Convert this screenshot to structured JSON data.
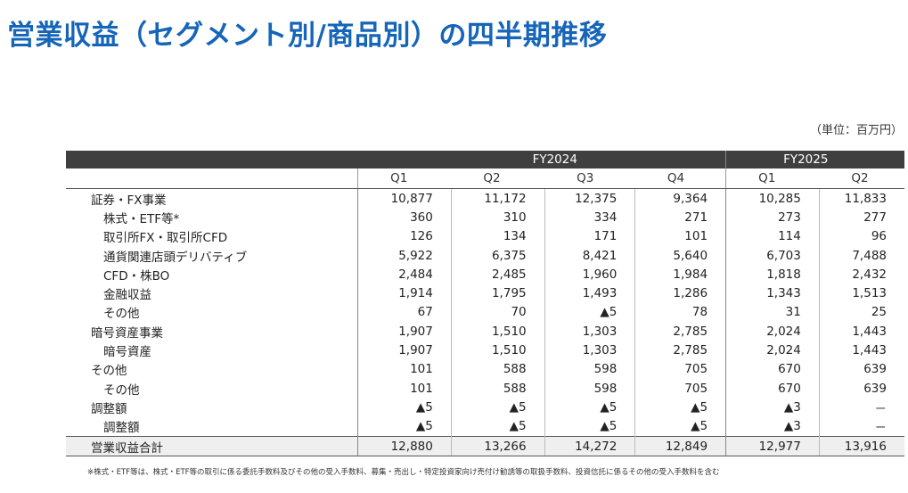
{
  "title": "営業収益（セグメント別/商品別）の四半期推移",
  "unit": "（単位：百万円）",
  "fiscal_years": [
    "FY2024",
    "FY2025"
  ],
  "quarters": [
    "Q1",
    "Q2",
    "Q3",
    "Q4",
    "Q1",
    "Q2"
  ],
  "rows": [
    {
      "label": "証券・FX事業",
      "level": "category",
      "values": [
        "10,877",
        "11,172",
        "12,375",
        "9,364",
        "10,285",
        "11,833"
      ]
    },
    {
      "label": "株式・ETF等*",
      "level": "sub",
      "values": [
        "360",
        "310",
        "334",
        "271",
        "273",
        "277"
      ]
    },
    {
      "label": "取引所FX・取引所CFD",
      "level": "sub",
      "values": [
        "126",
        "134",
        "171",
        "101",
        "114",
        "96"
      ]
    },
    {
      "label": "通貨関連店頭デリバティブ",
      "level": "sub",
      "values": [
        "5,922",
        "6,375",
        "8,421",
        "5,640",
        "6,703",
        "7,488"
      ]
    },
    {
      "label": "CFD・株BO",
      "level": "sub",
      "values": [
        "2,484",
        "2,485",
        "1,960",
        "1,984",
        "1,818",
        "2,432"
      ]
    },
    {
      "label": "金融収益",
      "level": "sub",
      "values": [
        "1,914",
        "1,795",
        "1,493",
        "1,286",
        "1,343",
        "1,513"
      ]
    },
    {
      "label": "その他",
      "level": "sub",
      "values": [
        "67",
        "70",
        "▲5",
        "78",
        "31",
        "25"
      ]
    },
    {
      "label": "暗号資産事業",
      "level": "category",
      "values": [
        "1,907",
        "1,510",
        "1,303",
        "2,785",
        "2,024",
        "1,443"
      ]
    },
    {
      "label": "暗号資産",
      "level": "sub",
      "values": [
        "1,907",
        "1,510",
        "1,303",
        "2,785",
        "2,024",
        "1,443"
      ]
    },
    {
      "label": "その他",
      "level": "category",
      "values": [
        "101",
        "588",
        "598",
        "705",
        "670",
        "639"
      ]
    },
    {
      "label": "その他",
      "level": "sub",
      "values": [
        "101",
        "588",
        "598",
        "705",
        "670",
        "639"
      ]
    },
    {
      "label": "調整額",
      "level": "category",
      "values": [
        "▲5",
        "▲5",
        "▲5",
        "▲5",
        "▲3",
        "－"
      ]
    },
    {
      "label": "調整額",
      "level": "sub",
      "values": [
        "▲5",
        "▲5",
        "▲5",
        "▲5",
        "▲3",
        "－"
      ]
    },
    {
      "label": "営業収益合計",
      "level": "total",
      "values": [
        "12,880",
        "13,266",
        "14,272",
        "12,849",
        "12,977",
        "13,916"
      ]
    }
  ],
  "footnote": "※株式・ETF等は、株式・ETF等の取引に係る委託手数料及びその他の受入手数料、募集・売出し・特定投資家向け売付け勧誘等の取扱手数料、投資信託に係るその他の受入手数料を含む"
}
